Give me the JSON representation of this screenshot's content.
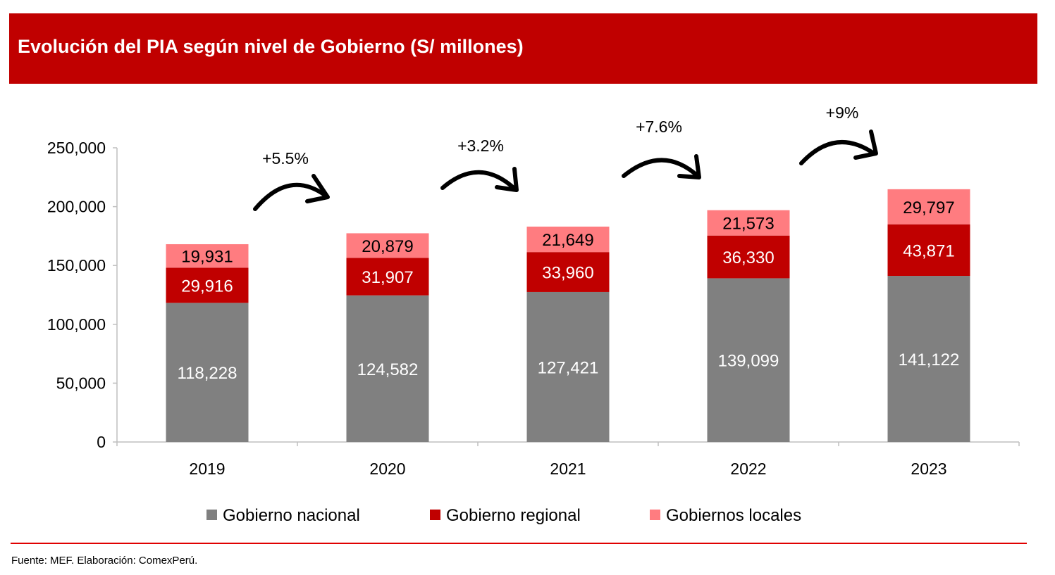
{
  "chart_data": {
    "type": "bar",
    "stacked": true,
    "title": "Evolución del PIA según nivel de Gobierno (S/ millones)",
    "xlabel": "",
    "ylabel": "",
    "ylim": [
      0,
      250000
    ],
    "yticks": [
      "0",
      "50,000",
      "100,000",
      "150,000",
      "200,000",
      "250,000"
    ],
    "categories": [
      "2019",
      "2020",
      "2021",
      "2022",
      "2023"
    ],
    "series": [
      {
        "name": "Gobierno nacional",
        "color": "#808080",
        "label_color": "#FFFFFF",
        "values": [
          118228,
          124582,
          127421,
          139099,
          141122
        ],
        "labels": [
          "118,228",
          "124,582",
          "127,421",
          "139,099",
          "141,122"
        ]
      },
      {
        "name": "Gobierno regional",
        "color": "#C00000",
        "label_color": "#FFFFFF",
        "values": [
          29916,
          31907,
          33960,
          36330,
          43871
        ],
        "labels": [
          "29,916",
          "31,907",
          "33,960",
          "36,330",
          "43,871"
        ]
      },
      {
        "name": "Gobiernos locales",
        "color": "#FF7C80",
        "label_color": "#000000",
        "values": [
          19931,
          20879,
          21649,
          21573,
          29797
        ],
        "labels": [
          "19,931",
          "20,879",
          "21,649",
          "21,573",
          "29,797"
        ]
      }
    ],
    "growth_annotations": [
      "+5.5%",
      "+3.2%",
      "+7.6%",
      "+9%"
    ],
    "legend_position": "bottom",
    "grid": false
  },
  "footer": "Fuente: MEF. Elaboración: ComexPerú."
}
